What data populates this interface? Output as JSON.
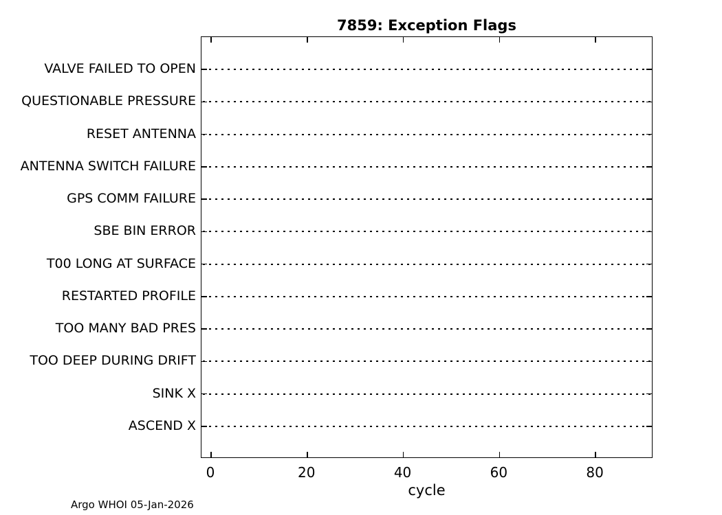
{
  "title": "7859: Exception Flags",
  "footer": "Argo WHOI 05-Jan-2026",
  "colors": {
    "background": "#ffffff",
    "axis": "#000000",
    "text": "#000000",
    "grid": "#000000"
  },
  "chart_data": {
    "type": "scatter",
    "title": "7859: Exception Flags",
    "xlabel": "cycle",
    "ylabel": "",
    "categories": [
      "VALVE FAILED TO OPEN",
      "QUESTIONABLE PRESSURE",
      "RESET ANTENNA",
      "ANTENNA SWITCH FAILURE",
      "GPS COMM FAILURE",
      "SBE BIN ERROR",
      "T00 LONG AT SURFACE",
      "RESTARTED PROFILE",
      "TOO MANY BAD PRES",
      "TOO DEEP DURING DRIFT",
      "SINK X",
      "ASCEND X"
    ],
    "x_ticks": [
      0,
      20,
      40,
      60,
      80
    ],
    "xlim": [
      -2,
      92
    ],
    "series": [],
    "points": [],
    "grid": "dotted horizontal line per category, ticks mirrored on all four box edges",
    "legend": "none",
    "annotation": "Argo WHOI 05-Jan-2026"
  }
}
